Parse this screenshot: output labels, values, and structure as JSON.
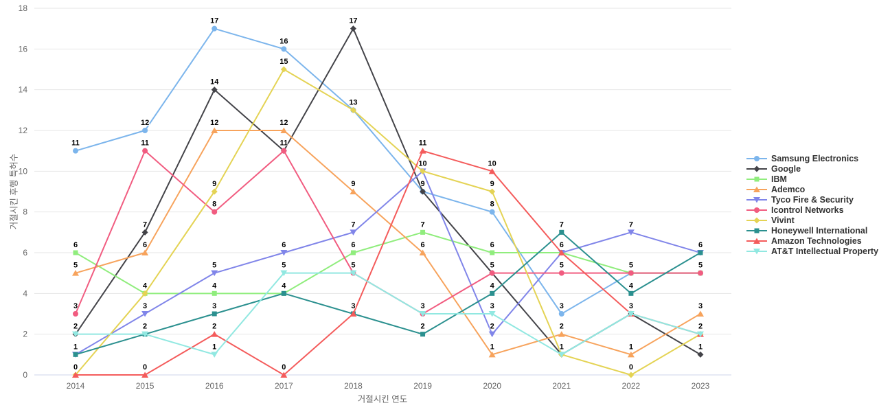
{
  "chart_data": {
    "type": "line",
    "title": "",
    "xlabel": "거절시킨 연도",
    "ylabel": "거절시킨 후행 특허수",
    "x": [
      2014,
      2015,
      2016,
      2017,
      2018,
      2019,
      2020,
      2021,
      2022,
      2023
    ],
    "ylim": [
      0,
      18
    ],
    "ytick_step": 2,
    "grid": true,
    "legend_position": "right",
    "background_color": "#ffffff",
    "gridline_color": "#e6e6e6",
    "axis_line_color": "#ccd6eb",
    "tick_label_color": "#666666",
    "data_label_color": "#000000",
    "legend_text_color": "#333333",
    "series": [
      {
        "name": "Samsung Electronics",
        "color": "#7cb5ec",
        "marker": "circle",
        "values": [
          11,
          12,
          17,
          16,
          13,
          9,
          8,
          3,
          5,
          5
        ]
      },
      {
        "name": "Google",
        "color": "#434348",
        "marker": "diamond",
        "values": [
          2,
          7,
          14,
          11,
          17,
          9,
          5,
          1,
          3,
          1
        ]
      },
      {
        "name": "IBM",
        "color": "#90ed7d",
        "marker": "square",
        "values": [
          6,
          4,
          4,
          4,
          6,
          7,
          6,
          6,
          5,
          5
        ]
      },
      {
        "name": "Ademco",
        "color": "#f7a35c",
        "marker": "triangle",
        "values": [
          5,
          6,
          12,
          12,
          9,
          6,
          1,
          2,
          1,
          3
        ]
      },
      {
        "name": "Tyco Fire & Security",
        "color": "#8085e9",
        "marker": "triangle-down",
        "values": [
          1,
          3,
          5,
          6,
          7,
          10,
          2,
          6,
          7,
          6
        ]
      },
      {
        "name": "Icontrol Networks",
        "color": "#f15c80",
        "marker": "circle",
        "values": [
          3,
          11,
          8,
          11,
          5,
          3,
          5,
          5,
          5,
          5
        ]
      },
      {
        "name": "Vivint",
        "color": "#e4d354",
        "marker": "diamond",
        "values": [
          0,
          4,
          9,
          15,
          13,
          10,
          9,
          1,
          0,
          2
        ]
      },
      {
        "name": "Honeywell International",
        "color": "#2b908f",
        "marker": "square",
        "values": [
          1,
          2,
          3,
          4,
          3,
          2,
          4,
          7,
          4,
          6
        ]
      },
      {
        "name": "Amazon Technologies",
        "color": "#f45b5b",
        "marker": "triangle",
        "values": [
          0,
          0,
          2,
          0,
          3,
          11,
          10,
          6,
          3,
          2
        ]
      },
      {
        "name": "AT&T Intellectual Property",
        "color": "#91e8e1",
        "marker": "triangle-down",
        "values": [
          2,
          2,
          1,
          5,
          5,
          3,
          3,
          1,
          3,
          2
        ]
      }
    ]
  }
}
